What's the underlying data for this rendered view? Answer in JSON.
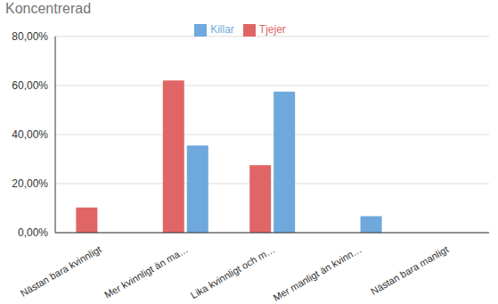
{
  "chart_data": {
    "type": "bar",
    "title": "Koncentrerad",
    "categories": [
      "Nästan bara kvinnligt",
      "Mer kvinnligt än ma…",
      "Lika kvinnligt och m…",
      "Mer manligt än kvinn…",
      "Nästan bara manligt"
    ],
    "series": [
      {
        "name": "Tjejer",
        "color": "#e06666",
        "values": [
          10.3,
          62,
          27.5,
          0,
          0
        ]
      },
      {
        "name": "Killar",
        "color": "#6fa8dc",
        "values": [
          0,
          35.5,
          57.5,
          6.7,
          0
        ]
      }
    ],
    "ylim": [
      0,
      80
    ],
    "yticks": [
      {
        "value": 0,
        "label": "0,00%"
      },
      {
        "value": 20,
        "label": "20,00%"
      },
      {
        "value": 40,
        "label": "40,00%"
      },
      {
        "value": 60,
        "label": "60,00%"
      },
      {
        "value": 80,
        "label": "80,00%"
      }
    ],
    "grid": true,
    "legend": "top"
  }
}
